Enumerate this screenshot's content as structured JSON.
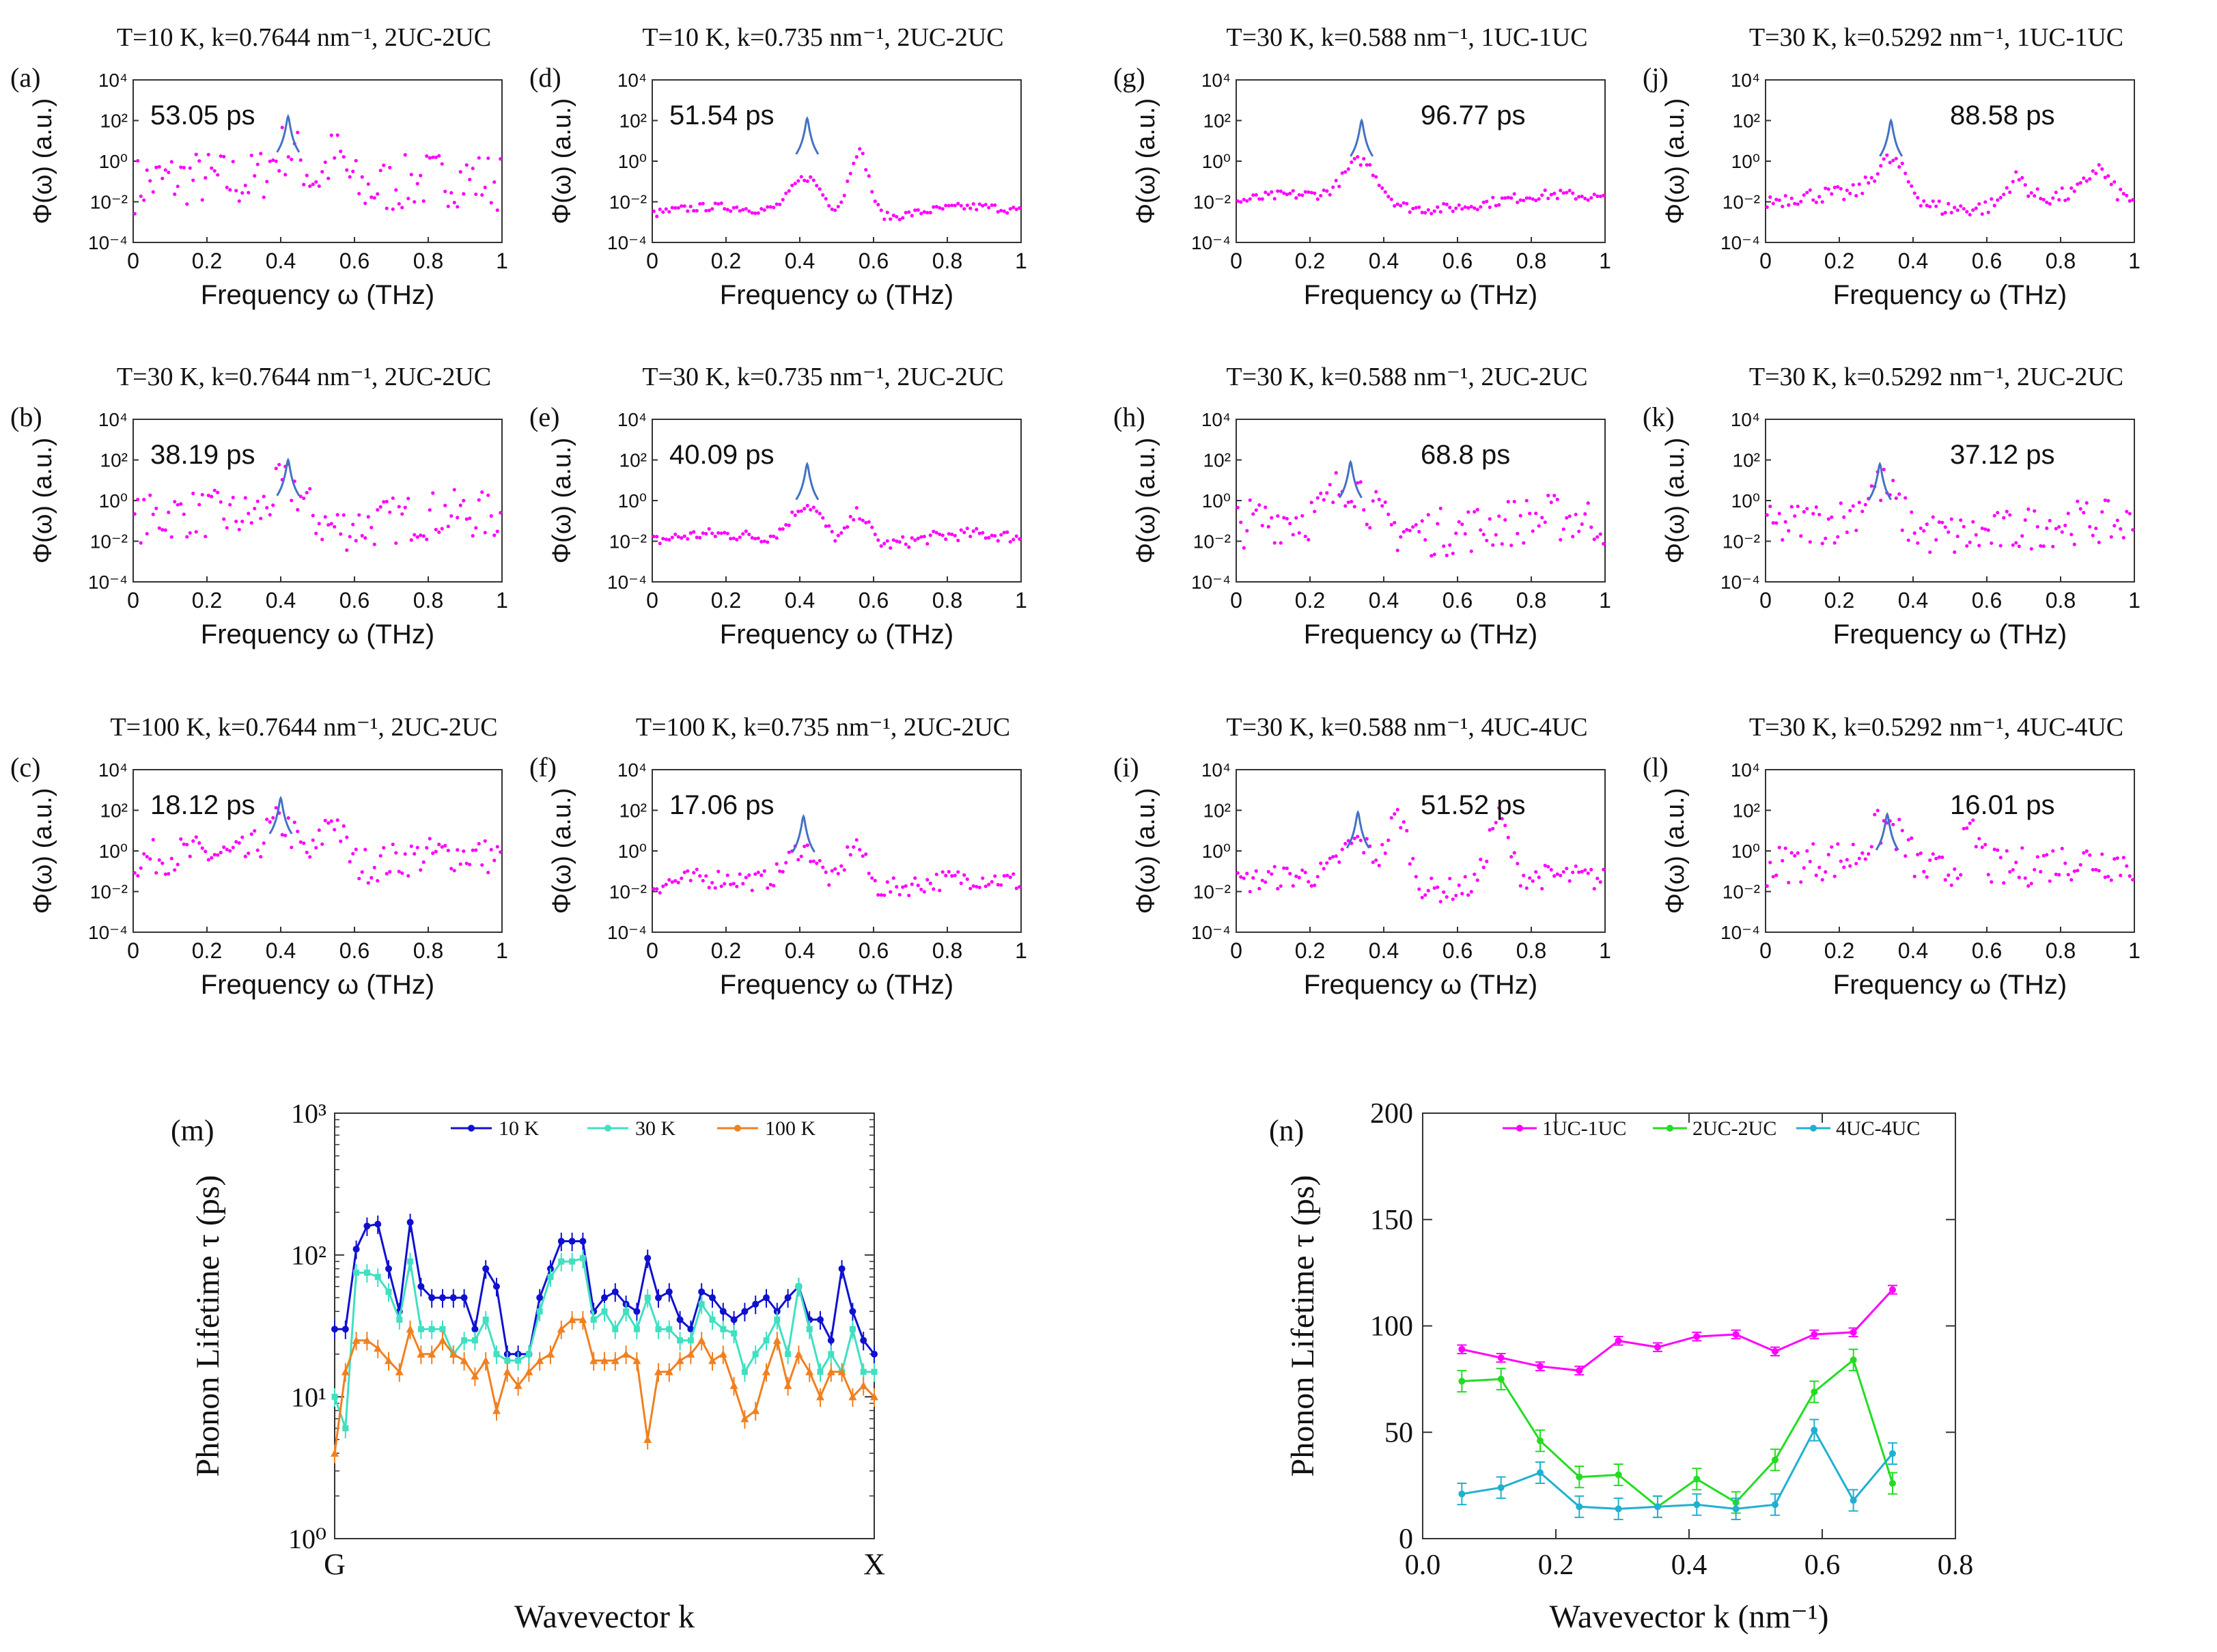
{
  "colors": {
    "points": "#ff00ff",
    "fit": "#4472c4",
    "t10": "#1010d0",
    "t30": "#40e0c0",
    "t100": "#f08020",
    "uc1": "#ff00ff",
    "uc2": "#22dd22",
    "uc4": "#20b0d0"
  },
  "chart_data": [
    {
      "type": "scatter",
      "id": "a",
      "label": "(a)",
      "title": "T=10 K, k=0.7644 nm⁻¹, 2UC-2UC",
      "annotation": "53.05 ps",
      "xlabel": "Frequency ω (THz)",
      "ylabel": "Φ(ω) (a.u.)",
      "xlim": [
        0,
        1
      ],
      "ylim_log10": [
        -4,
        4
      ],
      "yscale": "log",
      "x_ticks": [
        "0",
        "0.2",
        "0.4",
        "0.6",
        "0.8",
        "1"
      ],
      "y_ticks": [
        "10⁻⁴",
        "10⁻²",
        "10⁰",
        "10²",
        "10⁴"
      ],
      "peak_x": 0.42,
      "peak_log10": 2.2,
      "base_log10": -1.2,
      "spread": 1.4,
      "secondary": [
        [
          0.55,
          0.6
        ]
      ]
    },
    {
      "type": "scatter",
      "id": "b",
      "label": "(b)",
      "title": "T=30 K, k=0.7644 nm⁻¹, 2UC-2UC",
      "annotation": "38.19 ps",
      "xlabel": "Frequency ω (THz)",
      "ylabel": "Φ(ω) (a.u.)",
      "xlim": [
        0,
        1
      ],
      "ylim_log10": [
        -4,
        4
      ],
      "yscale": "log",
      "x_ticks": [
        "0",
        "0.2",
        "0.4",
        "0.6",
        "0.8",
        "1"
      ],
      "y_ticks": [
        "10⁻⁴",
        "10⁻²",
        "10⁰",
        "10²",
        "10⁴"
      ],
      "peak_x": 0.42,
      "peak_log10": 2.0,
      "base_log10": -1.0,
      "spread": 1.2,
      "secondary": []
    },
    {
      "type": "scatter",
      "id": "c",
      "label": "(c)",
      "title": "T=100 K, k=0.7644 nm⁻¹, 2UC-2UC",
      "annotation": "18.12 ps",
      "xlabel": "Frequency ω (THz)",
      "ylabel": "Φ(ω) (a.u.)",
      "xlim": [
        0,
        1
      ],
      "ylim_log10": [
        -4,
        4
      ],
      "yscale": "log",
      "x_ticks": [
        "0",
        "0.2",
        "0.4",
        "0.6",
        "0.8",
        "1"
      ],
      "y_ticks": [
        "10⁻⁴",
        "10⁻²",
        "10⁰",
        "10²",
        "10⁴"
      ],
      "peak_x": 0.4,
      "peak_log10": 2.6,
      "base_log10": -0.5,
      "spread": 0.9,
      "secondary": [
        [
          0.54,
          2.0
        ]
      ]
    },
    {
      "type": "scatter",
      "id": "d",
      "label": "(d)",
      "title": "T=10 K, k=0.735 nm⁻¹, 2UC-2UC",
      "annotation": "51.54 ps",
      "xlabel": "Frequency ω (THz)",
      "ylabel": "Φ(ω) (a.u.)",
      "xlim": [
        0,
        1
      ],
      "ylim_log10": [
        -4,
        4
      ],
      "yscale": "log",
      "x_ticks": [
        "0",
        "0.2",
        "0.4",
        "0.6",
        "0.8",
        "1"
      ],
      "y_ticks": [
        "10⁻⁴",
        "10⁻²",
        "10⁰",
        "10²",
        "10⁴"
      ],
      "peak_x": 0.42,
      "peak_log10": 2.1,
      "base_log10": -2.6,
      "spread": 0.2,
      "secondary": [
        [
          0.56,
          0.8
        ]
      ]
    },
    {
      "type": "scatter",
      "id": "e",
      "label": "(e)",
      "title": "T=30 K, k=0.735 nm⁻¹, 2UC-2UC",
      "annotation": "40.09 ps",
      "xlabel": "Frequency ω (THz)",
      "ylabel": "Φ(ω) (a.u.)",
      "xlim": [
        0,
        1
      ],
      "ylim_log10": [
        -4,
        4
      ],
      "yscale": "log",
      "x_ticks": [
        "0",
        "0.2",
        "0.4",
        "0.6",
        "0.8",
        "1"
      ],
      "y_ticks": [
        "10⁻⁴",
        "10⁻²",
        "10⁰",
        "10²",
        "10⁴"
      ],
      "peak_x": 0.42,
      "peak_log10": 1.8,
      "base_log10": -2.0,
      "spread": 0.3,
      "secondary": [
        [
          0.56,
          -0.3
        ]
      ]
    },
    {
      "type": "scatter",
      "id": "f",
      "label": "(f)",
      "title": "T=100 K, k=0.735 nm⁻¹, 2UC-2UC",
      "annotation": "17.06 ps",
      "xlabel": "Frequency ω (THz)",
      "ylabel": "Φ(ω) (a.u.)",
      "xlim": [
        0,
        1
      ],
      "ylim_log10": [
        -4,
        4
      ],
      "yscale": "log",
      "x_ticks": [
        "0",
        "0.2",
        "0.4",
        "0.6",
        "0.8",
        "1"
      ],
      "y_ticks": [
        "10⁻⁴",
        "10⁻²",
        "10⁰",
        "10²",
        "10⁴"
      ],
      "peak_x": 0.41,
      "peak_log10": 1.7,
      "base_log10": -1.7,
      "spread": 0.5,
      "secondary": [
        [
          0.55,
          0.7
        ]
      ]
    },
    {
      "type": "scatter",
      "id": "g",
      "label": "(g)",
      "title": "T=30 K, k=0.588 nm⁻¹, 1UC-1UC",
      "annotation": "96.77 ps",
      "xlabel": "Frequency ω (THz)",
      "ylabel": "Φ(ω) (a.u.)",
      "xlim": [
        0,
        1
      ],
      "ylim_log10": [
        -4,
        4
      ],
      "yscale": "log",
      "x_ticks": [
        "0",
        "0.2",
        "0.4",
        "0.6",
        "0.8",
        "1"
      ],
      "y_ticks": [
        "10⁻⁴",
        "10⁻²",
        "10⁰",
        "10²",
        "10⁴"
      ],
      "peak_x": 0.34,
      "peak_log10": 2.0,
      "base_log10": -2.0,
      "spread": 0.25,
      "secondary": []
    },
    {
      "type": "scatter",
      "id": "h",
      "label": "(h)",
      "title": "T=30 K, k=0.588 nm⁻¹, 2UC-2UC",
      "annotation": "68.8 ps",
      "xlabel": "Frequency ω (THz)",
      "ylabel": "Φ(ω) (a.u.)",
      "xlim": [
        0,
        1
      ],
      "ylim_log10": [
        -4,
        4
      ],
      "yscale": "log",
      "x_ticks": [
        "0",
        "0.2",
        "0.4",
        "0.6",
        "0.8",
        "1"
      ],
      "y_ticks": [
        "10⁻⁴",
        "10⁻²",
        "10⁰",
        "10²",
        "10⁴"
      ],
      "peak_x": 0.31,
      "peak_log10": 1.9,
      "base_log10": -1.2,
      "spread": 1.2,
      "secondary": []
    },
    {
      "type": "scatter",
      "id": "i",
      "label": "(i)",
      "title": "T=30 K, k=0.588 nm⁻¹, 4UC-4UC",
      "annotation": "51.52 ps",
      "xlabel": "Frequency ω (THz)",
      "ylabel": "Φ(ω) (a.u.)",
      "xlim": [
        0,
        1
      ],
      "ylim_log10": [
        -4,
        4
      ],
      "yscale": "log",
      "x_ticks": [
        "0",
        "0.2",
        "0.4",
        "0.6",
        "0.8",
        "1"
      ],
      "y_ticks": [
        "10⁻⁴",
        "10⁻²",
        "10⁰",
        "10²",
        "10⁴"
      ],
      "peak_x": 0.33,
      "peak_log10": 1.9,
      "base_log10": -1.6,
      "spread": 0.6,
      "secondary": [
        [
          0.44,
          1.9
        ],
        [
          0.71,
          1.6
        ]
      ]
    },
    {
      "type": "scatter",
      "id": "j",
      "label": "(j)",
      "title": "T=30 K, k=0.5292 nm⁻¹, 1UC-1UC",
      "annotation": "88.58 ps",
      "xlabel": "Frequency ω (THz)",
      "ylabel": "Φ(ω) (a.u.)",
      "xlim": [
        0,
        1
      ],
      "ylim_log10": [
        -4,
        4
      ],
      "yscale": "log",
      "x_ticks": [
        "0",
        "0.2",
        "0.4",
        "0.6",
        "0.8",
        "1"
      ],
      "y_ticks": [
        "10⁻⁴",
        "10⁻²",
        "10⁰",
        "10²",
        "10⁴"
      ],
      "peak_x": 0.34,
      "peak_log10": 2.0,
      "base_log10": -2.0,
      "spread": 0.4,
      "secondary": [
        [
          0.68,
          -0.8
        ],
        [
          0.9,
          -0.7
        ]
      ]
    },
    {
      "type": "scatter",
      "id": "k",
      "label": "(k)",
      "title": "T=30 K, k=0.5292 nm⁻¹, 2UC-2UC",
      "annotation": "37.12 ps",
      "xlabel": "Frequency ω (THz)",
      "ylabel": "Φ(ω) (a.u.)",
      "xlim": [
        0,
        1
      ],
      "ylim_log10": [
        -4,
        4
      ],
      "yscale": "log",
      "x_ticks": [
        "0",
        "0.2",
        "0.4",
        "0.6",
        "0.8",
        "1"
      ],
      "y_ticks": [
        "10⁻⁴",
        "10⁻²",
        "10⁰",
        "10²",
        "10⁴"
      ],
      "peak_x": 0.31,
      "peak_log10": 1.8,
      "base_log10": -1.4,
      "spread": 1.1,
      "secondary": []
    },
    {
      "type": "scatter",
      "id": "l",
      "label": "(l)",
      "title": "T=30 K, k=0.5292 nm⁻¹, 4UC-4UC",
      "annotation": "16.01 ps",
      "xlabel": "Frequency ω (THz)",
      "ylabel": "Φ(ω) (a.u.)",
      "xlim": [
        0,
        1
      ],
      "ylim_log10": [
        -4,
        4
      ],
      "yscale": "log",
      "x_ticks": [
        "0",
        "0.2",
        "0.4",
        "0.6",
        "0.8",
        "1"
      ],
      "y_ticks": [
        "10⁻⁴",
        "10⁻²",
        "10⁰",
        "10²",
        "10⁴"
      ],
      "peak_x": 0.33,
      "peak_log10": 1.8,
      "base_log10": -0.8,
      "spread": 1.0,
      "secondary": [
        [
          0.56,
          1.0
        ]
      ]
    },
    {
      "type": "line",
      "id": "m",
      "label": "(m)",
      "xlabel": "Wavevector k",
      "ylabel": "Phonon Lifetime τ (ps)",
      "yscale": "log",
      "ylim": [
        1,
        1000
      ],
      "x_tick_labels": [
        "G",
        "X"
      ],
      "y_ticks": [
        "10⁰",
        "10¹",
        "10²",
        "10³"
      ],
      "legend": "top-center",
      "series": [
        {
          "name": "10 K",
          "values": [
            30,
            30,
            110,
            160,
            165,
            80,
            40,
            170,
            60,
            50,
            50,
            50,
            50,
            30,
            80,
            60,
            20,
            20,
            20,
            50,
            80,
            125,
            125,
            125,
            40,
            50,
            55,
            45,
            40,
            95,
            50,
            55,
            35,
            30,
            55,
            50,
            40,
            35,
            40,
            45,
            50,
            40,
            50,
            60,
            35,
            35,
            25,
            80,
            40,
            25,
            20
          ]
        },
        {
          "name": "30 K",
          "values": [
            10,
            6,
            75,
            75,
            70,
            55,
            35,
            90,
            30,
            30,
            30,
            20,
            25,
            25,
            35,
            20,
            18,
            18,
            20,
            40,
            70,
            90,
            90,
            95,
            35,
            40,
            30,
            40,
            30,
            50,
            30,
            30,
            25,
            25,
            45,
            35,
            30,
            28,
            15,
            20,
            25,
            35,
            20,
            60,
            30,
            15,
            20,
            15,
            30,
            15,
            15
          ]
        },
        {
          "name": "100 K",
          "values": [
            4,
            15,
            25,
            25,
            22,
            18,
            15,
            30,
            20,
            20,
            25,
            20,
            18,
            14,
            18,
            8,
            15,
            12,
            15,
            18,
            20,
            30,
            35,
            35,
            18,
            18,
            18,
            20,
            18,
            5,
            15,
            15,
            18,
            20,
            25,
            18,
            20,
            12,
            7,
            8,
            15,
            25,
            12,
            20,
            15,
            10,
            15,
            15,
            10,
            12,
            10
          ]
        }
      ]
    },
    {
      "type": "line",
      "id": "n",
      "label": "(n)",
      "xlabel": "Wavevector k (nm⁻¹)",
      "ylabel": "Phonon Lifetime τ (ps)",
      "xlim": [
        0,
        0.8
      ],
      "ylim": [
        0,
        200
      ],
      "x_ticks": [
        "0.0",
        "0.2",
        "0.4",
        "0.6",
        "0.8"
      ],
      "y_ticks": [
        "0",
        "50",
        "100",
        "150",
        "200"
      ],
      "legend": "top-center",
      "x": [
        0.0588,
        0.1176,
        0.1764,
        0.2352,
        0.294,
        0.3528,
        0.4116,
        0.4704,
        0.5292,
        0.588,
        0.6468,
        0.7056
      ],
      "series": [
        {
          "name": "1UC-1UC",
          "values": [
            89,
            85,
            81,
            79,
            93,
            90,
            95,
            96,
            88,
            96,
            97,
            117
          ]
        },
        {
          "name": "2UC-2UC",
          "values": [
            74,
            75,
            46,
            29,
            30,
            15,
            28,
            17,
            37,
            69,
            84,
            26
          ]
        },
        {
          "name": "4UC-4UC",
          "values": [
            21,
            24,
            31,
            15,
            14,
            15,
            16,
            14,
            16,
            51,
            18,
            40
          ]
        }
      ]
    }
  ]
}
